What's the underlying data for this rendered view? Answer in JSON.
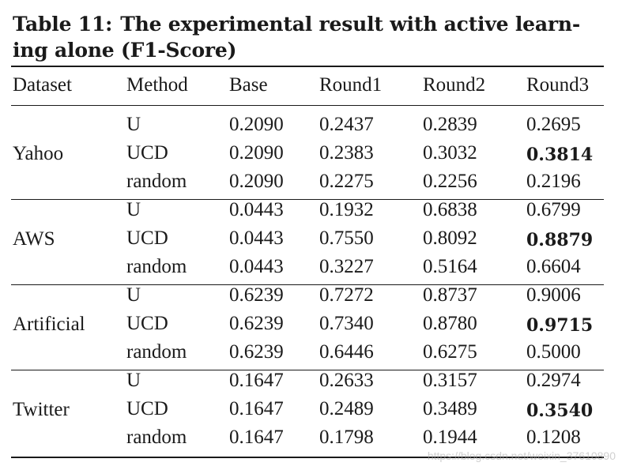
{
  "caption": {
    "label": "Table 11:",
    "text": "The experimental result with active learn- ing alone (F1-Score)"
  },
  "table": {
    "headers": [
      "Dataset",
      "Method",
      "Base",
      "Round1",
      "Round2",
      "Round3"
    ],
    "groups": [
      {
        "dataset": "Yahoo",
        "rows": [
          {
            "method": "U",
            "values": [
              "0.2090",
              "0.2437",
              "0.2839",
              "0.2695"
            ],
            "bold": [
              false,
              false,
              false,
              false
            ]
          },
          {
            "method": "UCD",
            "values": [
              "0.2090",
              "0.2383",
              "0.3032",
              "0.3814"
            ],
            "bold": [
              false,
              false,
              false,
              true
            ]
          },
          {
            "method": "random",
            "values": [
              "0.2090",
              "0.2275",
              "0.2256",
              "0.2196"
            ],
            "bold": [
              false,
              false,
              false,
              false
            ]
          }
        ]
      },
      {
        "dataset": "AWS",
        "rows": [
          {
            "method": "U",
            "values": [
              "0.0443",
              "0.1932",
              "0.6838",
              "0.6799"
            ],
            "bold": [
              false,
              false,
              false,
              false
            ]
          },
          {
            "method": "UCD",
            "values": [
              "0.0443",
              "0.7550",
              "0.8092",
              "0.8879"
            ],
            "bold": [
              false,
              false,
              false,
              true
            ]
          },
          {
            "method": "random",
            "values": [
              "0.0443",
              "0.3227",
              "0.5164",
              "0.6604"
            ],
            "bold": [
              false,
              false,
              false,
              false
            ]
          }
        ]
      },
      {
        "dataset": "Artificial",
        "rows": [
          {
            "method": "U",
            "values": [
              "0.6239",
              "0.7272",
              "0.8737",
              "0.9006"
            ],
            "bold": [
              false,
              false,
              false,
              false
            ]
          },
          {
            "method": "UCD",
            "values": [
              "0.6239",
              "0.7340",
              "0.8780",
              "0.9715"
            ],
            "bold": [
              false,
              false,
              false,
              true
            ]
          },
          {
            "method": "random",
            "values": [
              "0.6239",
              "0.6446",
              "0.6275",
              "0.5000"
            ],
            "bold": [
              false,
              false,
              false,
              false
            ]
          }
        ]
      },
      {
        "dataset": "Twitter",
        "rows": [
          {
            "method": "U",
            "values": [
              "0.1647",
              "0.2633",
              "0.3157",
              "0.2974"
            ],
            "bold": [
              false,
              false,
              false,
              false
            ]
          },
          {
            "method": "UCD",
            "values": [
              "0.1647",
              "0.2489",
              "0.3489",
              "0.3540"
            ],
            "bold": [
              false,
              false,
              false,
              true
            ]
          },
          {
            "method": "random",
            "values": [
              "0.1647",
              "0.1798",
              "0.1944",
              "0.1208"
            ],
            "bold": [
              false,
              false,
              false,
              false
            ]
          }
        ]
      }
    ]
  },
  "watermark": "https://blog.csdn.net/weixin_37610890"
}
